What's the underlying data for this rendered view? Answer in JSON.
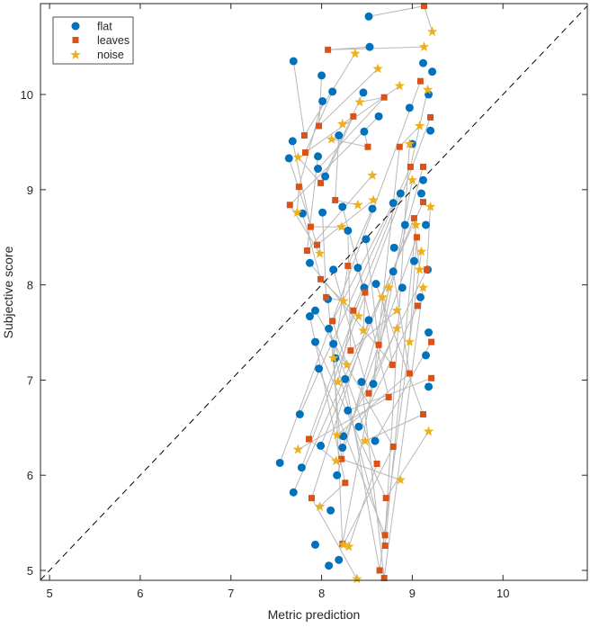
{
  "chart_data": {
    "type": "scatter",
    "title": "",
    "xlabel": "Metric prediction",
    "ylabel": "Subjective score",
    "xlim": [
      4.9,
      10.93
    ],
    "ylim": [
      4.896,
      10.955
    ],
    "xticks": [
      5,
      6,
      7,
      8,
      9,
      10
    ],
    "yticks": [
      5,
      6,
      7,
      8,
      9,
      10
    ],
    "grid": false,
    "legend_position": "top-left",
    "reference_line": {
      "style": "dashed",
      "from": [
        4.9,
        4.9
      ],
      "to": [
        10.93,
        10.93
      ]
    },
    "connector_color": "#b8b8b8",
    "series": [
      {
        "name": "flat",
        "marker": "circle",
        "color": "#0072BD",
        "points": [
          [
            8.52,
            10.82
          ],
          [
            8.53,
            10.5
          ],
          [
            7.69,
            10.35
          ],
          [
            8.0,
            10.2
          ],
          [
            8.12,
            10.03
          ],
          [
            8.46,
            10.02
          ],
          [
            8.01,
            9.93
          ],
          [
            8.63,
            9.77
          ],
          [
            7.68,
            9.51
          ],
          [
            7.64,
            9.33
          ],
          [
            7.96,
            9.35
          ],
          [
            8.19,
            9.57
          ],
          [
            8.47,
            9.61
          ],
          [
            7.96,
            9.22
          ],
          [
            8.04,
            9.14
          ],
          [
            7.79,
            8.75
          ],
          [
            8.01,
            8.76
          ],
          [
            8.23,
            8.82
          ],
          [
            8.56,
            8.8
          ],
          [
            8.79,
            8.86
          ],
          [
            8.87,
            8.96
          ],
          [
            8.29,
            8.57
          ],
          [
            8.49,
            8.48
          ],
          [
            7.87,
            8.23
          ],
          [
            8.13,
            8.16
          ],
          [
            8.4,
            8.18
          ],
          [
            8.79,
            8.14
          ],
          [
            8.6,
            8.01
          ],
          [
            8.47,
            7.97
          ],
          [
            8.07,
            7.85
          ],
          [
            7.87,
            7.67
          ],
          [
            7.93,
            7.73
          ],
          [
            8.08,
            7.54
          ],
          [
            8.52,
            7.63
          ],
          [
            7.93,
            7.4
          ],
          [
            8.13,
            7.38
          ],
          [
            7.97,
            7.12
          ],
          [
            8.15,
            7.23
          ],
          [
            8.26,
            7.01
          ],
          [
            8.44,
            6.98
          ],
          [
            8.57,
            6.96
          ],
          [
            7.76,
            6.64
          ],
          [
            7.99,
            6.31
          ],
          [
            8.23,
            6.29
          ],
          [
            8.24,
            6.41
          ],
          [
            8.41,
            6.51
          ],
          [
            8.59,
            6.36
          ],
          [
            8.29,
            6.68
          ],
          [
            7.54,
            6.13
          ],
          [
            7.78,
            6.08
          ],
          [
            7.69,
            5.82
          ],
          [
            8.17,
            6.0
          ],
          [
            8.1,
            5.63
          ],
          [
            7.93,
            5.27
          ],
          [
            8.19,
            5.11
          ],
          [
            8.08,
            5.05
          ],
          [
            9.12,
            10.33
          ],
          [
            9.18,
            10.0
          ],
          [
            9.0,
            9.48
          ],
          [
            9.12,
            9.1
          ],
          [
            9.15,
            8.63
          ],
          [
            9.17,
            8.16
          ],
          [
            9.09,
            7.87
          ],
          [
            9.18,
            7.5
          ],
          [
            9.18,
            6.93
          ],
          [
            9.15,
            7.26
          ],
          [
            8.92,
            8.63
          ],
          [
            8.8,
            8.39
          ],
          [
            8.89,
            7.97
          ],
          [
            9.02,
            8.25
          ],
          [
            8.97,
            9.86
          ],
          [
            9.22,
            10.24
          ],
          [
            9.1,
            8.96
          ],
          [
            9.2,
            9.62
          ]
        ]
      },
      {
        "name": "leaves",
        "marker": "square",
        "color": "#D95319",
        "points": [
          [
            9.13,
            10.93
          ],
          [
            8.07,
            10.47
          ],
          [
            7.81,
            9.57
          ],
          [
            7.97,
            9.67
          ],
          [
            7.82,
            9.39
          ],
          [
            7.99,
            9.07
          ],
          [
            7.75,
            9.03
          ],
          [
            7.65,
            8.84
          ],
          [
            7.88,
            8.61
          ],
          [
            7.95,
            8.42
          ],
          [
            7.84,
            8.36
          ],
          [
            8.15,
            8.89
          ],
          [
            8.51,
            9.45
          ],
          [
            8.69,
            9.97
          ],
          [
            8.35,
            9.77
          ],
          [
            7.99,
            8.06
          ],
          [
            8.05,
            7.87
          ],
          [
            8.48,
            7.92
          ],
          [
            8.29,
            8.2
          ],
          [
            8.12,
            7.62
          ],
          [
            8.35,
            7.73
          ],
          [
            8.32,
            7.31
          ],
          [
            8.63,
            7.37
          ],
          [
            8.78,
            7.16
          ],
          [
            8.52,
            6.86
          ],
          [
            8.74,
            6.82
          ],
          [
            8.97,
            7.07
          ],
          [
            9.12,
            6.64
          ],
          [
            7.86,
            6.38
          ],
          [
            8.22,
            6.17
          ],
          [
            8.26,
            5.92
          ],
          [
            8.79,
            6.3
          ],
          [
            8.61,
            6.12
          ],
          [
            7.89,
            5.76
          ],
          [
            8.71,
            5.76
          ],
          [
            8.23,
            5.28
          ],
          [
            8.7,
            5.37
          ],
          [
            8.7,
            5.26
          ],
          [
            8.64,
            5.0
          ],
          [
            8.69,
            4.92
          ],
          [
            8.86,
            9.45
          ],
          [
            8.98,
            9.24
          ],
          [
            9.02,
            8.7
          ],
          [
            9.05,
            8.5
          ],
          [
            9.16,
            8.16
          ],
          [
            9.06,
            7.78
          ],
          [
            9.21,
            7.4
          ],
          [
            9.21,
            7.02
          ],
          [
            9.09,
            10.14
          ],
          [
            9.2,
            9.76
          ],
          [
            9.12,
            8.87
          ],
          [
            9.12,
            9.24
          ]
        ]
      },
      {
        "name": "noise",
        "marker": "star",
        "color": "#EDB120",
        "points": [
          [
            9.22,
            10.66
          ],
          [
            9.13,
            10.5
          ],
          [
            8.37,
            10.43
          ],
          [
            8.62,
            10.27
          ],
          [
            8.86,
            10.09
          ],
          [
            7.74,
            9.34
          ],
          [
            7.73,
            8.76
          ],
          [
            7.98,
            8.33
          ],
          [
            8.22,
            8.61
          ],
          [
            8.57,
            8.89
          ],
          [
            8.56,
            9.15
          ],
          [
            8.4,
            8.84
          ],
          [
            8.11,
            9.53
          ],
          [
            8.42,
            9.92
          ],
          [
            8.23,
            9.69
          ],
          [
            8.41,
            7.67
          ],
          [
            8.24,
            7.83
          ],
          [
            8.46,
            7.52
          ],
          [
            8.13,
            7.23
          ],
          [
            8.28,
            7.16
          ],
          [
            8.18,
            6.98
          ],
          [
            8.83,
            7.73
          ],
          [
            8.74,
            7.97
          ],
          [
            8.67,
            7.87
          ],
          [
            8.83,
            7.54
          ],
          [
            7.74,
            6.27
          ],
          [
            8.17,
            6.42
          ],
          [
            8.48,
            6.36
          ],
          [
            8.16,
            6.15
          ],
          [
            8.87,
            5.95
          ],
          [
            7.98,
            5.67
          ],
          [
            8.24,
            5.27
          ],
          [
            8.3,
            5.25
          ],
          [
            8.39,
            4.91
          ],
          [
            9.18,
            6.46
          ],
          [
            9.0,
            9.1
          ],
          [
            8.97,
            9.48
          ],
          [
            9.04,
            8.63
          ],
          [
            9.1,
            8.35
          ],
          [
            9.12,
            7.97
          ],
          [
            9.08,
            9.67
          ],
          [
            9.17,
            10.05
          ],
          [
            9.08,
            8.16
          ],
          [
            8.97,
            7.4
          ],
          [
            9.2,
            8.82
          ]
        ]
      }
    ]
  }
}
